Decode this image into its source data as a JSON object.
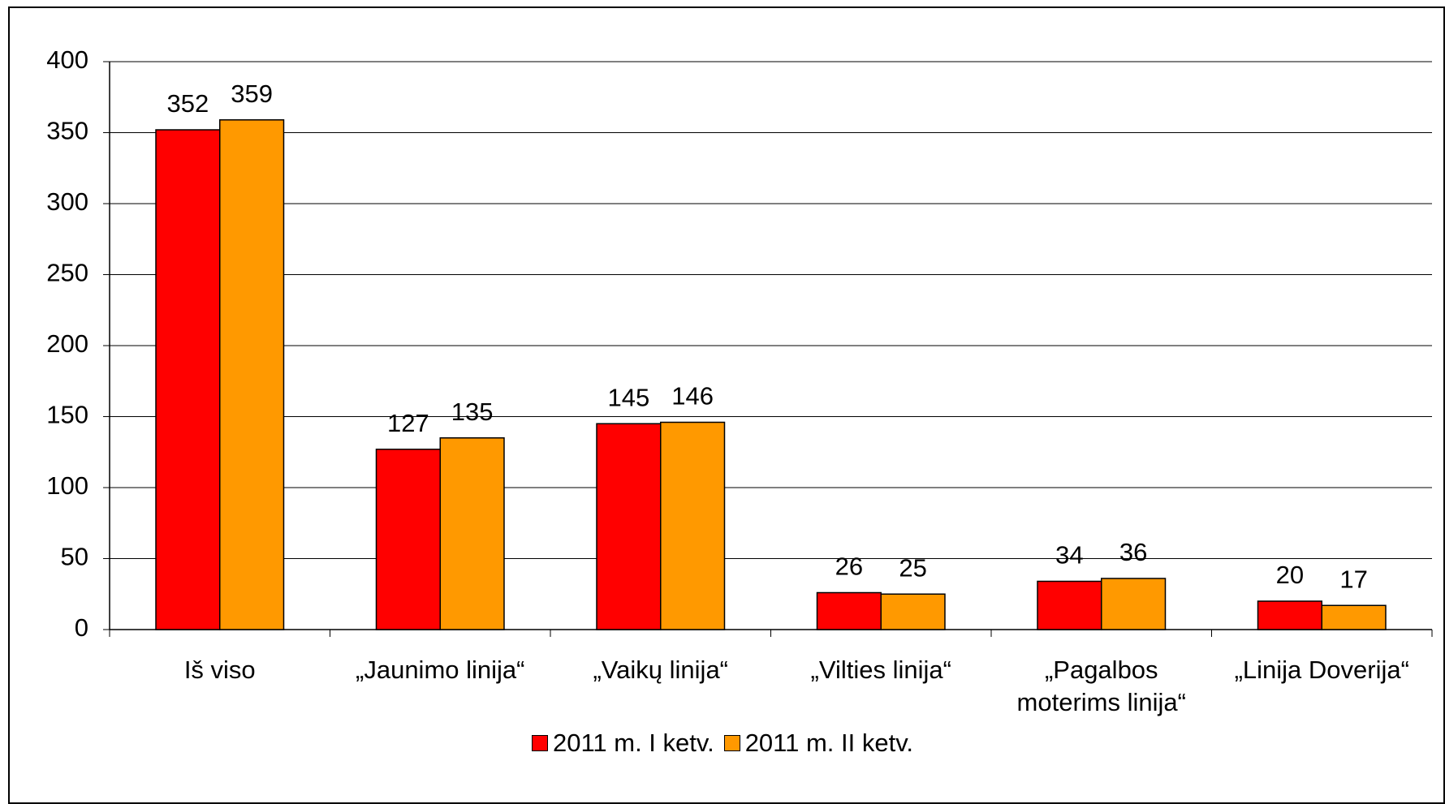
{
  "chart_data": {
    "type": "bar",
    "categories": [
      "Iš viso",
      "„Jaunimo linija“",
      "„Vaikų linija“",
      "„Vilties linija“",
      "„Pagalbos moterims linija“",
      "„Linija Doverija“"
    ],
    "series": [
      {
        "name": "2011 m. I ketv.",
        "color": "#ff0000",
        "values": [
          352,
          127,
          145,
          26,
          34,
          20
        ]
      },
      {
        "name": "2011 m. II ketv.",
        "color": "#ff9900",
        "values": [
          359,
          135,
          146,
          25,
          36,
          17
        ]
      }
    ],
    "ylim": [
      0,
      400
    ],
    "yticks": [
      0,
      50,
      100,
      150,
      200,
      250,
      300,
      350,
      400
    ],
    "grid": true,
    "legend": "bottom"
  }
}
